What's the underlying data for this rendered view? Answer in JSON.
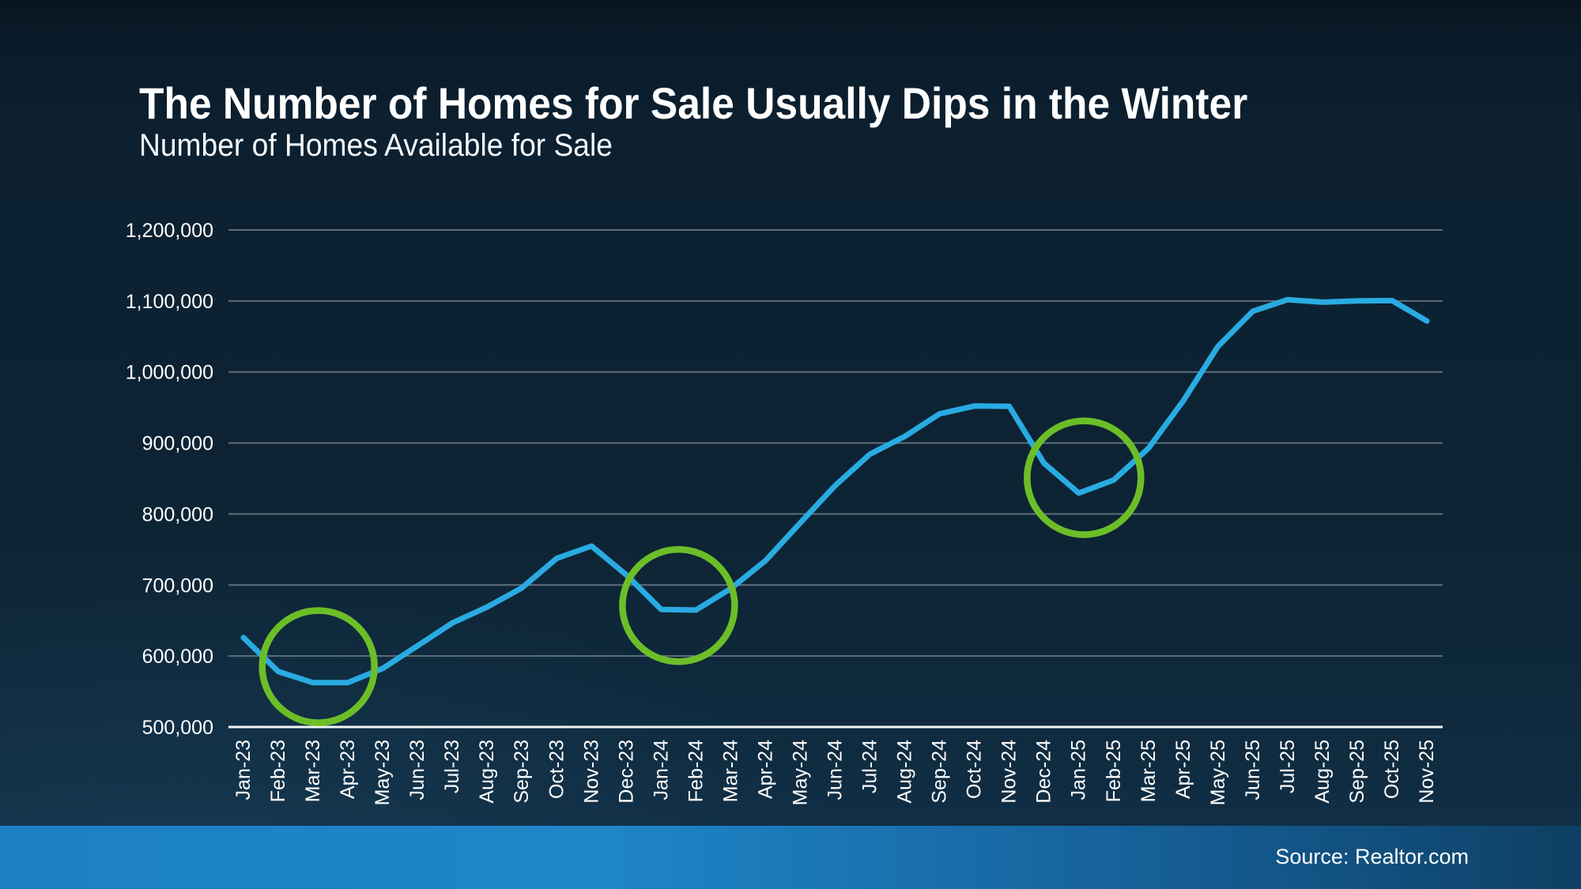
{
  "slide": {
    "title": "The Number of Homes for Sale Usually Dips in the Winter",
    "subtitle": "Number of Homes Available for Sale",
    "source": "Source: Realtor.com"
  },
  "colors": {
    "background_top": "#0a1a27",
    "background_bottom": "#113048",
    "title_text": "#ffffff",
    "line": "#29ABE2",
    "annotation_circle": "#6CBE28",
    "gridline": "#5e6e7a",
    "axis_baseline": "#f2f6f8",
    "footer_gradient_left": "#1b80c4",
    "footer_gradient_right": "#0e3f62",
    "source_text": "#ffffff"
  },
  "chart_data": {
    "type": "line",
    "title": "Number of Homes Available for Sale",
    "xlabel": "",
    "ylabel": "",
    "grid": "horizontal",
    "legend": "none",
    "ylim": [
      500000,
      1200000
    ],
    "ytick_step": 100000,
    "ytick_labels": [
      "500,000",
      "600,000",
      "700,000",
      "800,000",
      "900,000",
      "1,000,000",
      "1,100,000",
      "1,200,000"
    ],
    "x": [
      "Jan-23",
      "Feb-23",
      "Mar-23",
      "Apr-23",
      "May-23",
      "Jun-23",
      "Jul-23",
      "Aug-23",
      "Sep-23",
      "Oct-23",
      "Nov-23",
      "Dec-23",
      "Jan-24",
      "Feb-24",
      "Mar-24",
      "Apr-24",
      "May-24",
      "Jun-24",
      "Jul-24",
      "Aug-24",
      "Sep-24",
      "Oct-24",
      "Nov-24",
      "Dec-24",
      "Jan-25",
      "Feb-25",
      "Mar-25",
      "Apr-25",
      "May-25",
      "Jun-25",
      "Jul-25",
      "Aug-25",
      "Sep-25",
      "Oct-25",
      "Nov-25"
    ],
    "series": [
      {
        "name": "Homes Available for Sale",
        "color": "#29ABE2",
        "values": [
          625875,
          578089,
          562444,
          562565,
          582441,
          614326,
          646545,
          668941,
          695931,
          737480,
          754846,
          714176,
          665569,
          664716,
          694820,
          734318,
          787722,
          839992,
          884273,
          909344,
          940980,
          952066,
          951558,
          871509,
          829376,
          847825,
          892561,
          959251,
          1036101,
          1085616,
          1101892,
          1098255,
          1100137,
          1100533,
          1071824
        ]
      }
    ],
    "annotations": [
      {
        "type": "circle",
        "label": "winter-dip-2023",
        "months": [
          "Feb-23",
          "Mar-23",
          "Apr-23"
        ],
        "center_month_index": 2.15,
        "center_value": 585000,
        "radius_px": 71
      },
      {
        "type": "circle",
        "label": "winter-dip-2024",
        "months": [
          "Jan-24",
          "Feb-24"
        ],
        "center_month_index": 12.5,
        "center_value": 671000,
        "radius_px": 71
      },
      {
        "type": "circle",
        "label": "winter-dip-2025",
        "months": [
          "Jan-25",
          "Feb-25"
        ],
        "center_month_index": 24.15,
        "center_value": 851000,
        "radius_px": 72
      }
    ]
  }
}
